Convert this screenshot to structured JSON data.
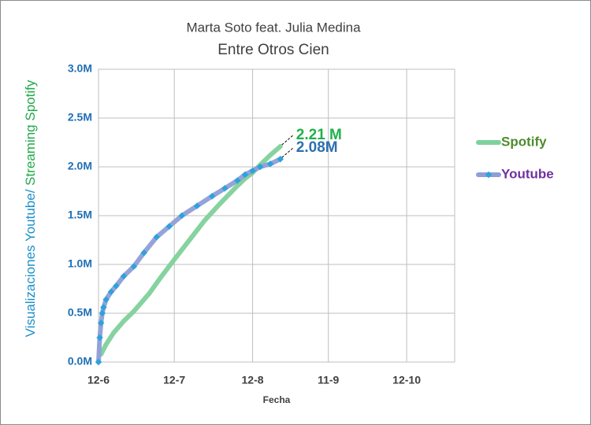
{
  "chart_data": {
    "type": "line",
    "title": "Marta Soto feat. Julia Medina",
    "subtitle": "Entre Otros Cien",
    "ylabel": [
      "Visualizaciones Youtube/ ",
      "Streaming Spotify"
    ],
    "ylabel_colors": [
      "#1f8fc9",
      "#21a84a"
    ],
    "xlabel": "Fecha",
    "xlim": [
      0,
      141
    ],
    "xticks": [
      {
        "value": 0,
        "label": "12-6"
      },
      {
        "value": 30,
        "label": "12-7"
      },
      {
        "value": 61,
        "label": "12-8"
      },
      {
        "value": 91,
        "label": "11-9"
      },
      {
        "value": 122,
        "label": "12-10"
      }
    ],
    "ylim": [
      0,
      3
    ],
    "yticks": [
      {
        "value": 0,
        "label": "0.0M"
      },
      {
        "value": 0.5,
        "label": "0.5M"
      },
      {
        "value": 1,
        "label": "1.0M"
      },
      {
        "value": 1.5,
        "label": "1.5M"
      },
      {
        "value": 2,
        "label": "2.0M"
      },
      {
        "value": 2.5,
        "label": "2.5M"
      },
      {
        "value": 3,
        "label": "3.0M"
      }
    ],
    "grid": true,
    "series": [
      {
        "name": "Spotify",
        "color": "#7fd19b",
        "label_color": "#4e8b2c",
        "annotation_color": "#21b04b",
        "markers": false,
        "x": [
          1,
          3,
          6,
          10,
          14,
          20,
          25,
          30,
          36,
          42,
          48,
          54,
          58,
          61,
          64,
          68,
          72
        ],
        "values": [
          0.08,
          0.18,
          0.3,
          0.42,
          0.52,
          0.7,
          0.88,
          1.05,
          1.25,
          1.45,
          1.62,
          1.78,
          1.88,
          1.94,
          2.02,
          2.12,
          2.21
        ],
        "value_labels": [
          null,
          null,
          null,
          null,
          null,
          null,
          null,
          null,
          null,
          null,
          null,
          null,
          null,
          null,
          null,
          null,
          "2.21 M"
        ]
      },
      {
        "name": "Youtube",
        "color": "#8e9fd6",
        "label_color": "#7030a0",
        "annotation_color": "#2e6fae",
        "markers": true,
        "marker_color": "#2ea2dc",
        "x": [
          0,
          0.5,
          1,
          1.5,
          2,
          3,
          5,
          7,
          10,
          14,
          18,
          23,
          28,
          33,
          39,
          45,
          50,
          55,
          58,
          61,
          64,
          68,
          72
        ],
        "values": [
          0,
          0.25,
          0.4,
          0.5,
          0.56,
          0.64,
          0.72,
          0.78,
          0.88,
          0.98,
          1.12,
          1.28,
          1.39,
          1.5,
          1.6,
          1.7,
          1.78,
          1.86,
          1.92,
          1.96,
          2.0,
          2.03,
          2.08
        ],
        "value_labels": [
          null,
          null,
          null,
          null,
          null,
          null,
          null,
          null,
          null,
          null,
          null,
          null,
          null,
          null,
          null,
          null,
          null,
          null,
          null,
          null,
          null,
          null,
          "2.08M"
        ]
      }
    ]
  }
}
